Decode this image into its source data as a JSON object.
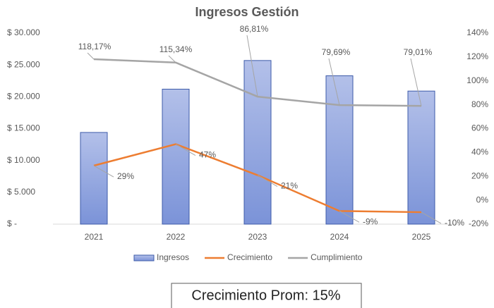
{
  "chart_data": {
    "type": "bar",
    "title": "Ingresos Gestión",
    "categories": [
      "2021",
      "2022",
      "2023",
      "2024",
      "2025"
    ],
    "series": [
      {
        "name": "Ingresos",
        "type": "bar",
        "color": "#8fa3de",
        "values": [
          14400,
          21200,
          25700,
          23300,
          20900
        ]
      },
      {
        "name": "Crecimiento",
        "type": "line",
        "axis": "y2",
        "color": "#ed7d31",
        "values": [
          29,
          47,
          21,
          -9,
          -10
        ],
        "value_labels": [
          "29%",
          "47%",
          "21%",
          "-9%",
          "-10%"
        ]
      },
      {
        "name": "Cumplimiento",
        "type": "line",
        "axis": "y2",
        "color": "#a5a5a5",
        "values": [
          118.17,
          115.34,
          86.81,
          79.69,
          79.01
        ],
        "value_labels": [
          "118,17%",
          "115,34%",
          "86,81%",
          "79,69%",
          "79,01%"
        ]
      }
    ],
    "ylim": [
      0,
      30000
    ],
    "yticks": [
      {
        "value": 0,
        "label": "$ -"
      },
      {
        "value": 5000,
        "label": "$ 5.000"
      },
      {
        "value": 10000,
        "label": "$ 10.000"
      },
      {
        "value": 15000,
        "label": "$ 15.000"
      },
      {
        "value": 20000,
        "label": "$ 20.000"
      },
      {
        "value": 25000,
        "label": "$ 25.000"
      },
      {
        "value": 30000,
        "label": "$ 30.000"
      }
    ],
    "y2lim": [
      -20,
      140
    ],
    "y2ticks": [
      {
        "value": -20,
        "label": "-20%"
      },
      {
        "value": 0,
        "label": "0%"
      },
      {
        "value": 20,
        "label": "20%"
      },
      {
        "value": 40,
        "label": "40%"
      },
      {
        "value": 60,
        "label": "60%"
      },
      {
        "value": 80,
        "label": "80%"
      },
      {
        "value": 100,
        "label": "100%"
      },
      {
        "value": 120,
        "label": "120%"
      },
      {
        "value": 140,
        "label": "140%"
      }
    ],
    "annotation": "Crecimiento Prom: 15%",
    "legend": "bottom"
  }
}
